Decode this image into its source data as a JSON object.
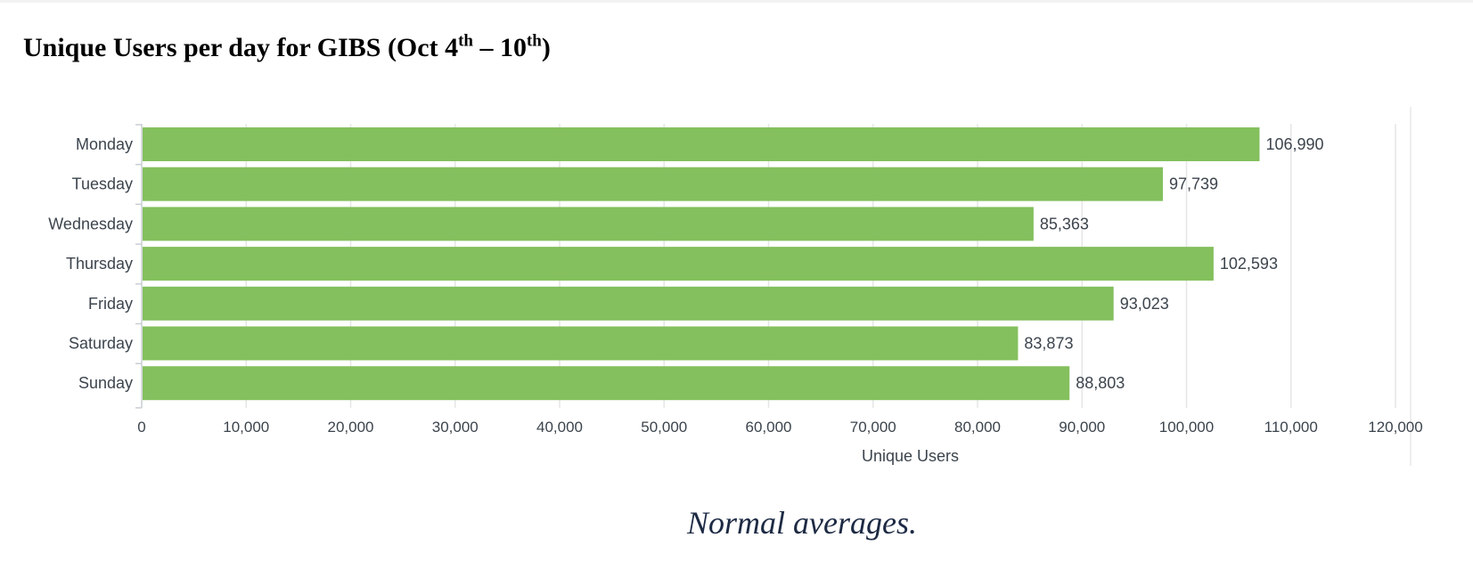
{
  "title": {
    "main": "Unique Users per day for GIBS (Oct 4",
    "sup1": "th",
    "mid": " – 10",
    "sup2": "th",
    "end": ")"
  },
  "caption": "Normal averages.",
  "chart_data": {
    "type": "bar",
    "orientation": "horizontal",
    "categories": [
      "Monday",
      "Tuesday",
      "Wednesday",
      "Thursday",
      "Friday",
      "Saturday",
      "Sunday"
    ],
    "values": [
      106990,
      97739,
      85363,
      102593,
      93023,
      83873,
      88803
    ],
    "value_labels": [
      "106,990",
      "97,739",
      "85,363",
      "102,593",
      "93,023",
      "83,873",
      "88,803"
    ],
    "xlabel": "Unique Users",
    "ylabel": "",
    "xlim": [
      0,
      120000
    ],
    "x_ticks": [
      0,
      10000,
      20000,
      30000,
      40000,
      50000,
      60000,
      70000,
      80000,
      90000,
      100000,
      110000,
      120000
    ],
    "x_tick_labels": [
      "0",
      "10,000",
      "20,000",
      "30,000",
      "40,000",
      "50,000",
      "60,000",
      "70,000",
      "80,000",
      "90,000",
      "100,000",
      "110,000",
      "120,000"
    ],
    "grid": true,
    "bar_color": "#84c05e",
    "text_color": "#3c444d",
    "grid_color": "#e6e6e6"
  }
}
